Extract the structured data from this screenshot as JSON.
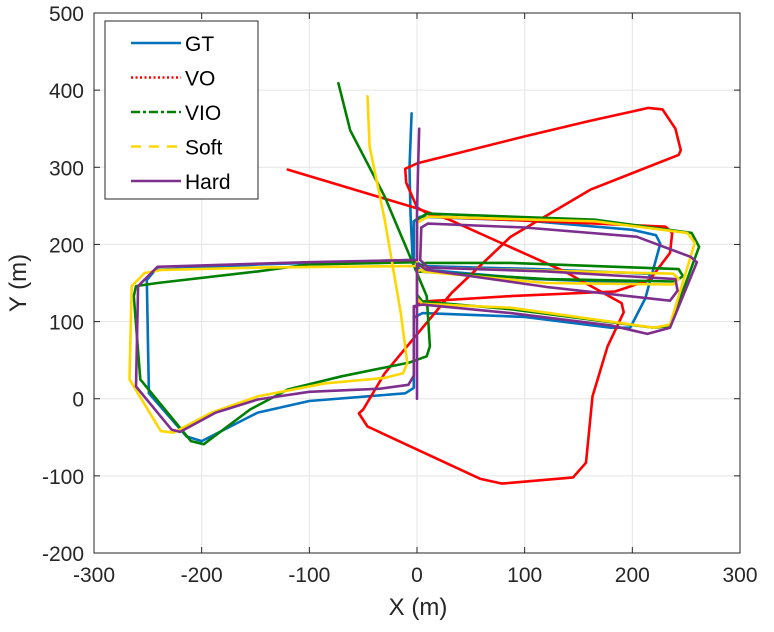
{
  "chart_data": {
    "type": "line",
    "title": "",
    "xlabel": "X (m)",
    "ylabel": "Y (m)",
    "xlim": [
      -300,
      300
    ],
    "ylim": [
      -200,
      500
    ],
    "xticks": [
      -300,
      -200,
      -100,
      0,
      100,
      200,
      300
    ],
    "yticks": [
      -200,
      -100,
      0,
      100,
      200,
      300,
      400,
      500
    ],
    "xtick_labels": [
      "-300",
      "-200",
      "-100",
      "0",
      "100",
      "200",
      "300"
    ],
    "ytick_labels": [
      "-200",
      "-100",
      "0",
      "100",
      "200",
      "300",
      "400",
      "500"
    ],
    "grid": true,
    "legend_position": "top-left",
    "series": [
      {
        "name": "GT",
        "color": "#0072BD",
        "legend_style": "solid",
        "x": [
          -5,
          -7,
          -6,
          -4,
          -148,
          -243,
          -251,
          -249,
          -214,
          -200,
          -148,
          -100,
          -11,
          -3,
          -3,
          5,
          100,
          180,
          198,
          212,
          226,
          222,
          200,
          100,
          3,
          -3,
          -3,
          5,
          110,
          215,
          218,
          210,
          110,
          0
        ],
        "y": [
          370,
          300,
          240,
          180,
          174,
          167,
          154,
          7,
          -49,
          -55,
          -18,
          -3,
          7,
          14,
          105,
          111,
          106,
          92,
          92,
          130,
          201,
          212,
          219,
          231,
          236,
          230,
          180,
          172,
          168,
          162,
          155,
          150,
          155,
          168
        ]
      },
      {
        "name": "VO",
        "color": "#FF0000",
        "legend_style": "dotted",
        "x": [
          -120,
          -3,
          30,
          137,
          190,
          192,
          177,
          163,
          157,
          145,
          79,
          59,
          -46,
          -54,
          -50,
          -30,
          1,
          32,
          87,
          161,
          243,
          245,
          240,
          228,
          215,
          160,
          100,
          0,
          -11,
          -10,
          0,
          15,
          150,
          231,
          237,
          235,
          216,
          184,
          87,
          5,
          -3,
          -3
        ],
        "y": [
          297,
          248,
          232,
          165,
          124,
          112,
          68,
          3,
          -83,
          -102,
          -110,
          -104,
          -36,
          -19,
          -14,
          33,
          85,
          137,
          210,
          271,
          316,
          322,
          350,
          375,
          377,
          360,
          340,
          305,
          298,
          280,
          248,
          236,
          228,
          223,
          215,
          189,
          154,
          139,
          133,
          126,
          118,
          100
        ]
      },
      {
        "name": "VIO",
        "color": "#008000",
        "legend_style": "dash-dot",
        "x": [
          -73,
          -62,
          -30,
          9,
          12,
          9,
          -7,
          -70,
          -120,
          -155,
          -198,
          -210,
          -257,
          -263,
          -261,
          -241,
          -148,
          -101,
          0,
          0,
          9,
          165,
          255,
          262,
          235,
          220,
          87,
          5,
          0,
          0,
          8,
          87,
          204,
          243,
          247,
          240,
          120,
          0
        ],
        "y": [
          409,
          348,
          262,
          133,
          68,
          55,
          47,
          29,
          12,
          -14,
          -59,
          -55,
          25,
          133,
          146,
          150,
          165,
          174,
          177,
          232,
          240,
          232,
          215,
          197,
          94,
          92,
          116,
          126,
          135,
          170,
          176,
          176,
          170,
          168,
          159,
          152,
          155,
          165
        ]
      },
      {
        "name": "Soft",
        "color": "#FFD700",
        "legend_style": "dashed",
        "x": [
          -46,
          -44,
          -30,
          -15,
          -9,
          -13,
          -30,
          -85,
          -148,
          -191,
          -226,
          -238,
          -267,
          -265,
          -253,
          -237,
          -148,
          0,
          0,
          10,
          165,
          251,
          258,
          235,
          220,
          87,
          5,
          0,
          0,
          8,
          120,
          238,
          243,
          238,
          120,
          5
        ],
        "y": [
          392,
          327,
          232,
          111,
          46,
          33,
          27,
          20,
          3,
          -18,
          -44,
          -42,
          25,
          146,
          163,
          167,
          170,
          172,
          228,
          236,
          230,
          215,
          202,
          96,
          92,
          118,
          123,
          130,
          165,
          170,
          166,
          162,
          155,
          148,
          150,
          165
        ]
      },
      {
        "name": "Hard",
        "color": "#7E2F8E",
        "legend_style": "solid",
        "x": [
          2,
          1,
          0,
          0,
          -101,
          -241,
          -259,
          -261,
          -228,
          -220,
          -187,
          -148,
          -100,
          -34,
          -8,
          -3,
          -3,
          5,
          87,
          180,
          214,
          235,
          260,
          254,
          204,
          100,
          10,
          4,
          3,
          10,
          120,
          240,
          242,
          235,
          120,
          9,
          0,
          0
        ],
        "y": [
          350,
          300,
          240,
          180,
          177,
          171,
          146,
          16,
          -40,
          -43,
          -18,
          -1,
          9,
          13,
          18,
          30,
          120,
          122,
          111,
          95,
          84,
          92,
          177,
          184,
          210,
          222,
          227,
          222,
          180,
          170,
          165,
          155,
          140,
          127,
          145,
          167,
          175,
          0
        ]
      }
    ]
  }
}
